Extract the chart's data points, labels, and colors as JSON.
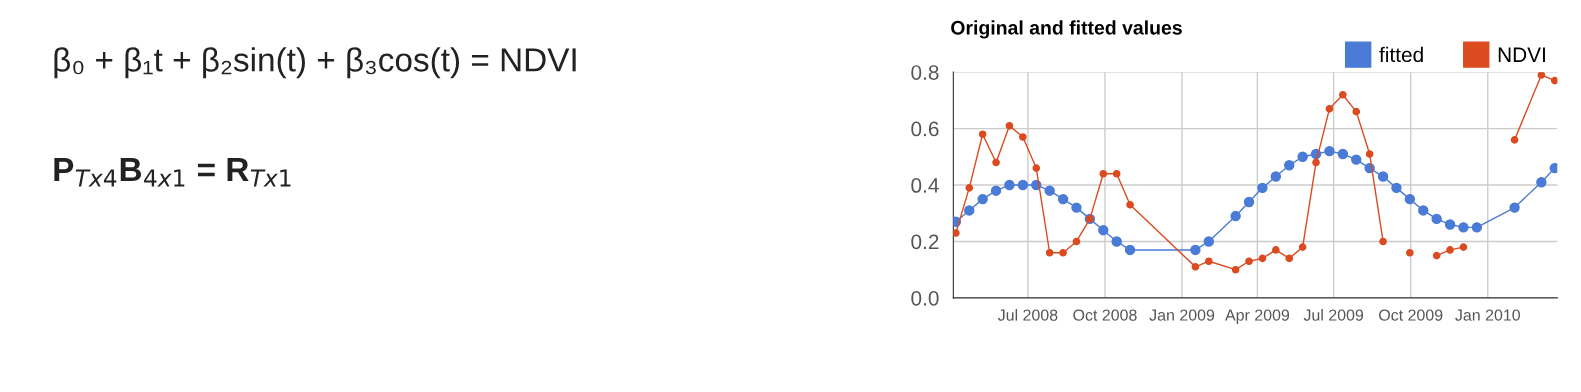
{
  "chart_data": {
    "type": "line",
    "title": "Original and fitted values",
    "annotations": [
      "β₀ + β₁t + β₂sin(t) + β₃cos(t) = NDVI",
      "P$_{Tx4}$B$_{4x1}$ = R$_{Tx1}$"
    ],
    "series": [
      {
        "name": "fitted",
        "color": "#4a7bd6",
        "x": [
          "2008-04-06",
          "2008-04-22",
          "2008-05-08",
          "2008-05-24",
          "2008-06-09",
          "2008-06-25",
          "2008-07-11",
          "2008-07-27",
          "2008-08-12",
          "2008-08-28",
          "2008-09-13",
          "2008-09-29",
          "2008-10-15",
          "2008-10-31",
          "2009-01-17",
          "2009-02-02",
          "2009-03-06",
          "2009-03-22",
          "2009-04-07",
          "2009-04-23",
          "2009-05-09",
          "2009-05-25",
          "2009-06-10",
          "2009-06-26",
          "2009-07-12",
          "2009-07-28",
          "2009-08-13",
          "2009-08-29",
          "2009-09-14",
          "2009-09-30",
          "2009-10-16",
          "2009-11-01",
          "2009-11-17",
          "2009-12-03",
          "2009-12-19",
          "2010-02-02",
          "2010-03-06",
          "2010-03-22"
        ],
        "values": [
          0.27,
          0.31,
          0.35,
          0.38,
          0.4,
          0.4,
          0.4,
          0.38,
          0.35,
          0.32,
          0.28,
          0.24,
          0.2,
          0.17,
          0.17,
          0.2,
          0.29,
          0.34,
          0.39,
          0.43,
          0.47,
          0.5,
          0.51,
          0.52,
          0.51,
          0.49,
          0.46,
          0.43,
          0.39,
          0.35,
          0.31,
          0.28,
          0.26,
          0.25,
          0.25,
          0.32,
          0.41,
          0.46
        ]
      },
      {
        "name": "NDVI",
        "color": "#dc4a1f",
        "x": [
          "2008-04-06",
          "2008-04-22",
          "2008-05-08",
          "2008-05-24",
          "2008-06-09",
          "2008-06-25",
          "2008-07-11",
          "2008-07-27",
          "2008-08-12",
          "2008-08-28",
          "2008-09-13",
          "2008-09-29",
          "2008-10-15",
          "2008-10-31",
          "2009-01-17",
          "2009-02-02",
          "2009-03-06",
          "2009-03-22",
          "2009-04-07",
          "2009-04-23",
          "2009-05-09",
          "2009-05-25",
          "2009-06-10",
          "2009-06-26",
          "2009-07-12",
          "2009-07-28",
          "2009-08-13",
          "2009-08-29",
          "2009-09-14",
          "2009-09-30",
          "2009-10-16",
          "2009-11-01",
          "2009-11-17",
          "2009-12-03",
          "2009-12-19",
          "2010-02-02",
          "2010-03-06",
          "2010-03-22"
        ],
        "values": [
          0.23,
          0.39,
          0.58,
          0.48,
          0.61,
          0.57,
          0.46,
          0.16,
          0.16,
          0.2,
          0.28,
          0.44,
          0.44,
          0.33,
          0.11,
          0.13,
          0.1,
          0.13,
          0.14,
          0.17,
          0.14,
          0.18,
          0.48,
          0.67,
          0.72,
          0.66,
          0.51,
          0.2,
          null,
          0.16,
          null,
          0.15,
          0.17,
          0.18,
          null,
          0.56,
          0.79,
          0.77
        ]
      }
    ],
    "xlim": [
      "2008-04-03",
      "2010-03-25"
    ],
    "xticks": [
      {
        "value": "2008-07-01",
        "label": "Jul 2008"
      },
      {
        "value": "2008-10-01",
        "label": "Oct 2008"
      },
      {
        "value": "2009-01-01",
        "label": "Jan 2009"
      },
      {
        "value": "2009-04-01",
        "label": "Apr 2009"
      },
      {
        "value": "2009-07-01",
        "label": "Jul 2009"
      },
      {
        "value": "2009-10-01",
        "label": "Oct 2009"
      },
      {
        "value": "2010-01-01",
        "label": "Jan 2010"
      }
    ],
    "ylim": [
      0,
      0.8
    ],
    "yticks": [
      {
        "value": 0,
        "label": "0.0"
      },
      {
        "value": 0.2,
        "label": "0.2"
      },
      {
        "value": 0.4,
        "label": "0.4"
      },
      {
        "value": 0.6,
        "label": "0.6"
      },
      {
        "value": 0.8,
        "label": "0.8"
      }
    ],
    "grid": true,
    "legend": "top right",
    "marker": "circle",
    "line_style": "solid"
  }
}
